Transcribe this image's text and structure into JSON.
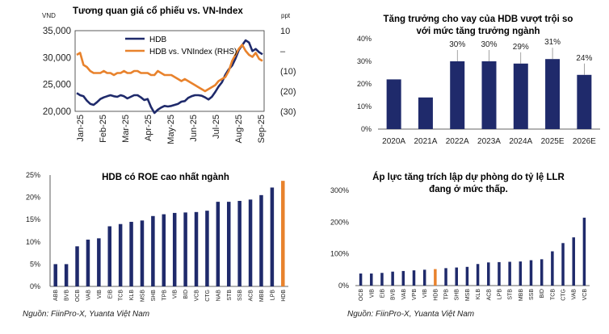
{
  "chart_data": [
    {
      "type": "line",
      "title": "Tương quan giá cổ phiếu vs. VN-Index",
      "y_left_unit": "VND",
      "y_right_unit": "ppt",
      "y_left_ticks": [
        "35,000",
        "30,000",
        "25,000",
        "20,000"
      ],
      "y_right_ticks": [
        "10",
        "–",
        "(10)",
        "(20)",
        "(30)"
      ],
      "ylim_left": [
        20000,
        35000
      ],
      "ylim_right": [
        -30,
        10
      ],
      "x_ticks": [
        "Jan-25",
        "Feb-25",
        "Mar-25",
        "Apr-25",
        "May-25",
        "Jun-25",
        "Jul-25",
        "Aug-25",
        "Sep-25"
      ],
      "legend_position": "top-right",
      "colors": {
        "hdb": "#1f2a6b",
        "rel": "#e8822c"
      },
      "series": [
        {
          "name": "HDB",
          "axis": "left",
          "values": [
            23400,
            23000,
            22800,
            22000,
            21400,
            21200,
            21700,
            22300,
            22600,
            22800,
            23000,
            22800,
            22700,
            23000,
            22800,
            22400,
            22700,
            23000,
            23000,
            22600,
            22100,
            22300,
            20800,
            19700,
            20300,
            20700,
            21000,
            20900,
            21000,
            21200,
            21400,
            21800,
            21900,
            22500,
            22800,
            23000,
            23000,
            22900,
            22600,
            22200,
            22700,
            23600,
            24600,
            25400,
            26800,
            27800,
            28500,
            29800,
            31400,
            32300,
            33200,
            32800,
            31200,
            31600,
            31000,
            30600
          ]
        },
        {
          "name": "HDB vs. VNIndex (RHS)",
          "axis": "right",
          "values": [
            -2,
            -1,
            -7,
            -8,
            -10,
            -11,
            -11,
            -11,
            -10,
            -11,
            -11,
            -12,
            -11,
            -11,
            -10,
            -11,
            -11,
            -10,
            -10,
            -11,
            -11,
            -11,
            -12,
            -12,
            -10,
            -11,
            -12,
            -12,
            -12,
            -13,
            -14,
            -15,
            -14,
            -15,
            -16,
            -17,
            -18,
            -19,
            -20,
            -19,
            -18,
            -17,
            -15,
            -14,
            -13,
            -10,
            -5,
            -2,
            1,
            3,
            0,
            -2,
            -3,
            -1,
            -4,
            -5
          ]
        }
      ]
    },
    {
      "type": "bar",
      "title_line1": "Tăng trưởng cho vay của HDB vượt trội so",
      "title_line2": "với mức tăng trưởng ngành",
      "categories": [
        "2020A",
        "2021A",
        "2022A",
        "2023A",
        "2024A",
        "2025E",
        "2026E"
      ],
      "values": [
        22,
        14,
        30,
        30,
        29,
        31,
        24
      ],
      "data_labels": [
        "",
        "",
        "30%",
        "30%",
        "29%",
        "31%",
        "24%"
      ],
      "y_ticks": [
        "40%",
        "30%",
        "20%",
        "10%",
        "0%"
      ],
      "ylim": [
        0,
        40
      ],
      "bar_color": "#1f2a6b"
    },
    {
      "type": "bar",
      "title": "HDB có ROE cao nhất ngành",
      "categories": [
        "ABB",
        "BVB",
        "OCB",
        "VAB",
        "VIB",
        "EIB",
        "TCB",
        "KLB",
        "MSB",
        "SHB",
        "TPB",
        "VIB",
        "BID",
        "VCB",
        "CTG",
        "NAB",
        "STB",
        "SSB",
        "ACB",
        "MBB",
        "LPB",
        "HDB"
      ],
      "values": [
        5,
        5,
        9,
        10.5,
        10.8,
        13.5,
        14,
        14.5,
        14.8,
        15.8,
        16.2,
        16.5,
        16.6,
        16.7,
        17,
        19,
        19,
        19.2,
        19.5,
        20.5,
        22.2,
        23.7
      ],
      "y_ticks": [
        "25%",
        "20%",
        "15%",
        "10%",
        "5%",
        "0%"
      ],
      "ylim": [
        0,
        25
      ],
      "bar_color": "#1f2a6b",
      "highlight_color": "#e8822c",
      "highlight_category": "HDB"
    },
    {
      "type": "bar",
      "title_line1": "Áp lực tăng trích lập dự phòng do tỷ lệ LLR",
      "title_line2": "đang ở mức thấp.",
      "categories": [
        "OCB",
        "VIB",
        "EIB",
        "BVB",
        "VAB",
        "VPB",
        "VIB",
        "HDB",
        "TPB",
        "SHB",
        "MSB",
        "KLB",
        "ACB",
        "LPB",
        "STB",
        "MBB",
        "SSB",
        "BID",
        "TCB",
        "CTG",
        "VAB",
        "VCB"
      ],
      "values": [
        38,
        38,
        40,
        44,
        46,
        48,
        50,
        52,
        55,
        57,
        59,
        68,
        73,
        74,
        75,
        76,
        80,
        83,
        108,
        134,
        152,
        214
      ],
      "y_ticks": [
        "300%",
        "200%",
        "100%",
        "0%"
      ],
      "ylim": [
        0,
        300
      ],
      "bar_color": "#1f2a6b",
      "highlight_color": "#e8822c",
      "highlight_category": "HDB"
    }
  ],
  "sources": [
    "Nguồn: FiinPro-X, Yuanta Việt Nam",
    "Nguồn: FiinPro-X, Yuanta Việt Nam"
  ]
}
